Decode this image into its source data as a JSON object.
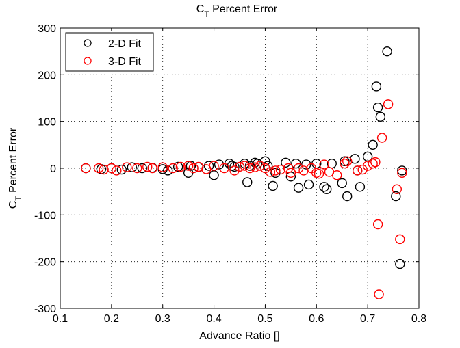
{
  "chart_data": {
    "type": "scatter",
    "title": "C_T Percent Error",
    "xlabel": "Advance Ratio []",
    "ylabel": "C_T Percent Error",
    "xlim": [
      0.1,
      0.8
    ],
    "ylim": [
      -300,
      300
    ],
    "xticks": [
      "0.1",
      "0.2",
      "0.3",
      "0.4",
      "0.5",
      "0.6",
      "0.7",
      "0.8"
    ],
    "yticks": [
      "300",
      "200",
      "100",
      "0",
      "-100",
      "-200",
      "-300"
    ],
    "xtick_values": [
      0.1,
      0.2,
      0.3,
      0.4,
      0.5,
      0.6,
      0.7,
      0.8
    ],
    "ytick_values": [
      300,
      200,
      100,
      0,
      -100,
      -200,
      -300
    ],
    "grid": true,
    "legend_position": "top-left",
    "series": [
      {
        "name": "2-D Fit",
        "color": "#000000",
        "marker": "open-circle",
        "x": [
          0.15,
          0.18,
          0.2,
          0.22,
          0.24,
          0.26,
          0.28,
          0.3,
          0.31,
          0.33,
          0.35,
          0.355,
          0.37,
          0.39,
          0.4,
          0.41,
          0.43,
          0.435,
          0.44,
          0.46,
          0.465,
          0.47,
          0.48,
          0.485,
          0.5,
          0.505,
          0.515,
          0.52,
          0.54,
          0.55,
          0.56,
          0.565,
          0.58,
          0.585,
          0.6,
          0.615,
          0.62,
          0.63,
          0.65,
          0.655,
          0.66,
          0.675,
          0.68,
          0.685,
          0.7,
          0.71,
          0.717,
          0.72,
          0.725,
          0.738,
          0.755,
          0.763,
          0.767
        ],
        "y": [
          0,
          -2,
          0,
          -3,
          2,
          0,
          1,
          -2,
          -5,
          3,
          -10,
          5,
          2,
          5,
          -15,
          8,
          10,
          5,
          3,
          10,
          -30,
          5,
          12,
          10,
          15,
          5,
          -38,
          -10,
          12,
          -18,
          10,
          -42,
          8,
          -35,
          10,
          -40,
          -45,
          10,
          -32,
          15,
          -60,
          20,
          -5,
          -40,
          25,
          50,
          175,
          130,
          110,
          250,
          -60,
          -205,
          -5
        ]
      },
      {
        "name": "3-D Fit",
        "color": "#ff0000",
        "marker": "open-circle",
        "x": [
          0.15,
          0.175,
          0.185,
          0.2,
          0.21,
          0.23,
          0.25,
          0.27,
          0.28,
          0.3,
          0.32,
          0.335,
          0.35,
          0.36,
          0.37,
          0.385,
          0.4,
          0.42,
          0.44,
          0.45,
          0.46,
          0.47,
          0.48,
          0.49,
          0.5,
          0.51,
          0.52,
          0.53,
          0.545,
          0.55,
          0.565,
          0.575,
          0.59,
          0.6,
          0.605,
          0.615,
          0.625,
          0.64,
          0.655,
          0.66,
          0.68,
          0.69,
          0.7,
          0.71,
          0.715,
          0.72,
          0.722,
          0.728,
          0.74,
          0.757,
          0.763,
          0.767
        ],
        "y": [
          0,
          0,
          -3,
          0,
          -5,
          2,
          0,
          3,
          0,
          2,
          0,
          3,
          5,
          0,
          3,
          -2,
          5,
          0,
          -5,
          3,
          5,
          0,
          2,
          5,
          0,
          -8,
          -5,
          -3,
          0,
          -10,
          0,
          -5,
          0,
          -10,
          -12,
          8,
          -8,
          -15,
          10,
          15,
          -5,
          -3,
          5,
          10,
          13,
          -120,
          -270,
          65,
          137,
          -45,
          -152,
          -10
        ]
      }
    ]
  }
}
